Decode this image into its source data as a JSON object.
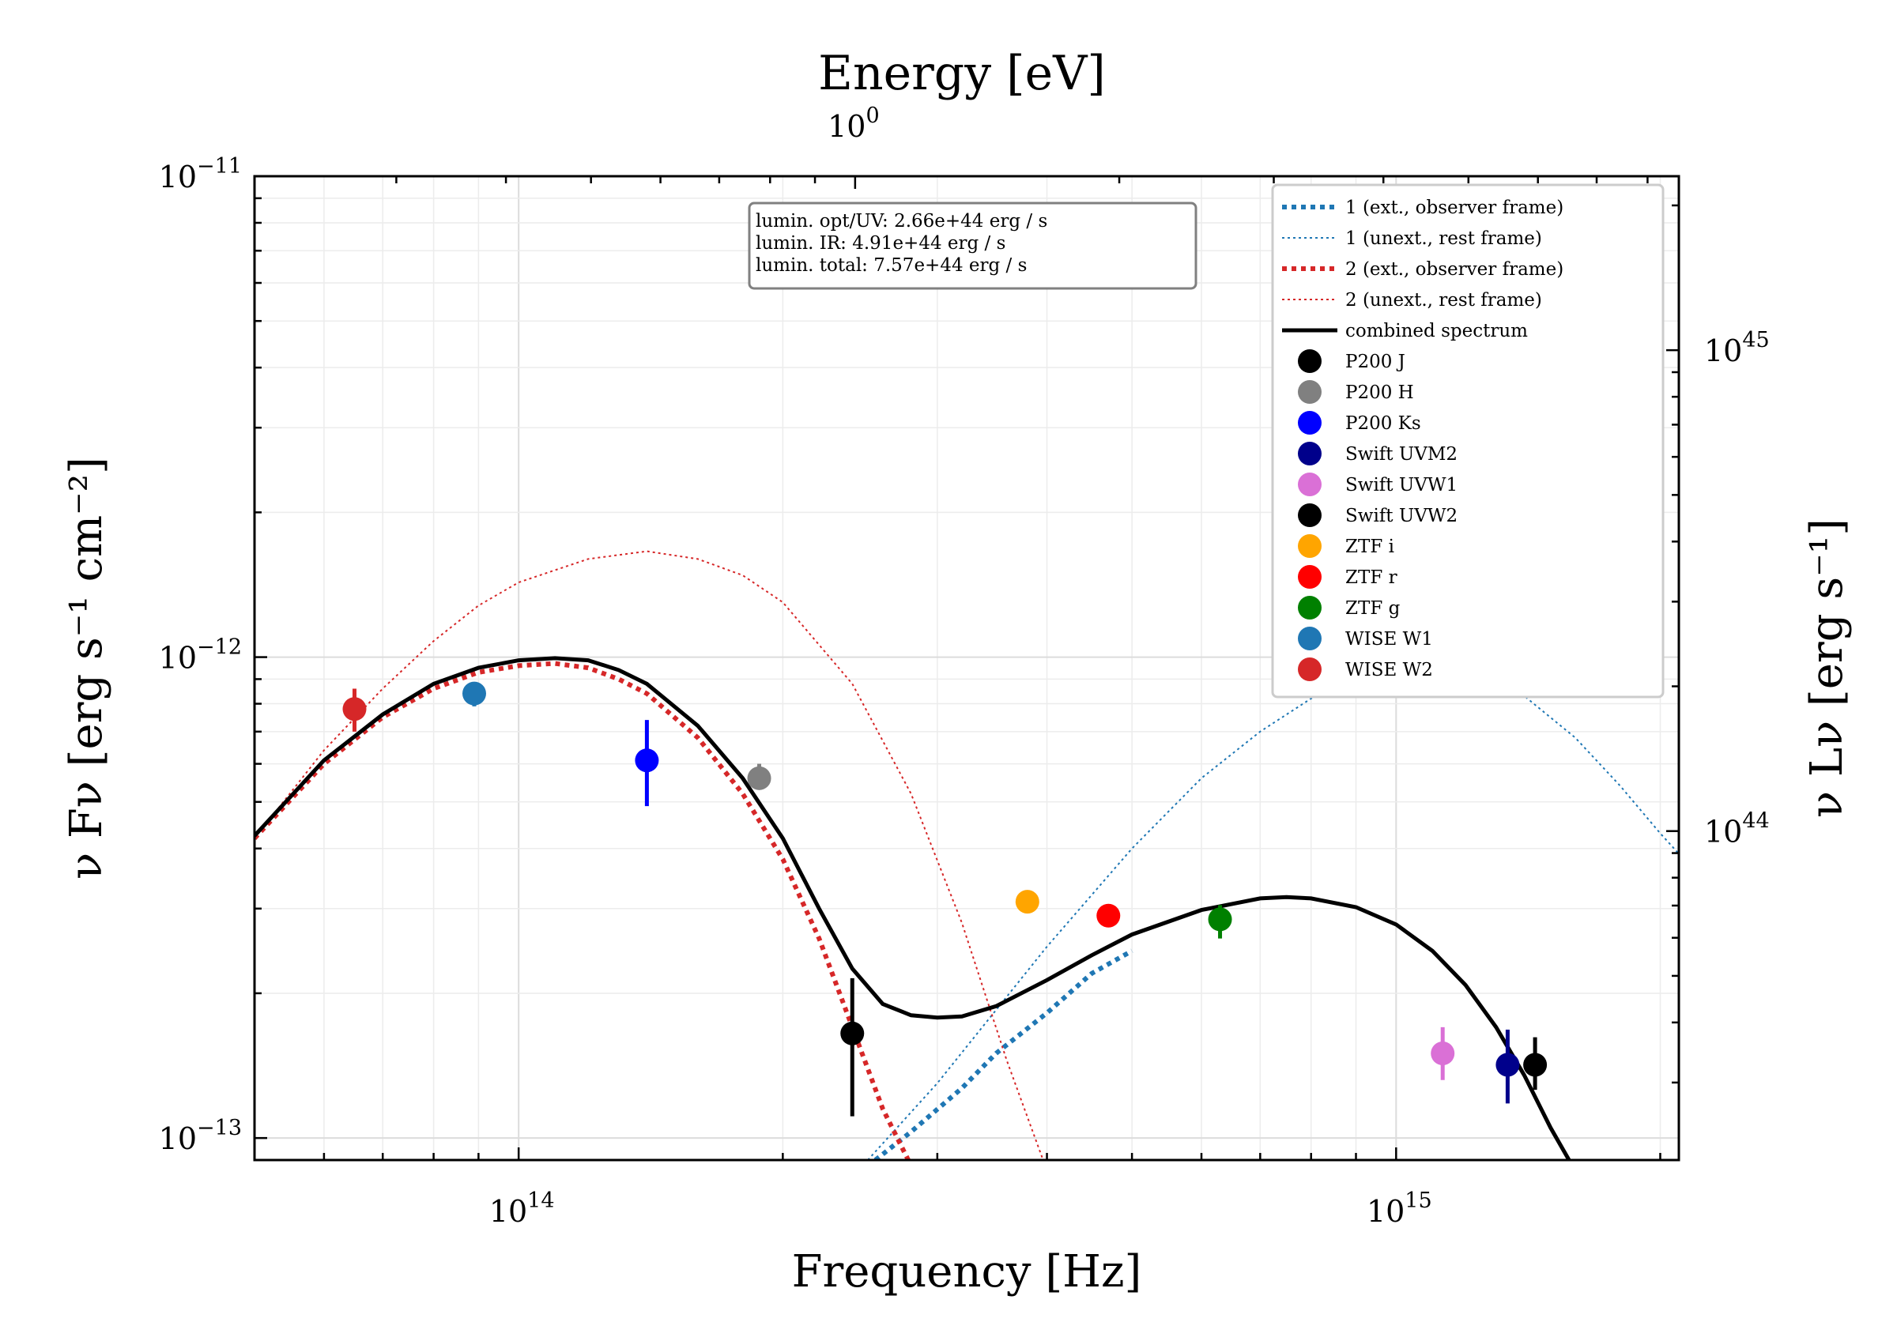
{
  "chart_data": {
    "type": "scatter",
    "title": "",
    "xlabel": "Frequency [Hz]",
    "ylabel": "ν Fν [erg s⁻¹ cm⁻²]",
    "top_xlabel": "Energy [eV]",
    "right_ylabel": "ν Lν [erg s⁻¹]",
    "xscale": "log",
    "yscale": "log",
    "xlim": [
      50000000000000.0,
      2100000000000000.0
    ],
    "ylim": [
      9e-14,
      1e-11
    ],
    "right_ylim": [
      2.07e+43,
      2.3e+45
    ],
    "grid": true,
    "legend_position": "top-right",
    "x_tick_labels": [
      {
        "base": "10",
        "exp": "14"
      },
      {
        "base": "10",
        "exp": "15"
      }
    ],
    "y_tick_labels": [
      {
        "base": "10",
        "exp": "−11"
      },
      {
        "base": "10",
        "exp": "−12"
      },
      {
        "base": "10",
        "exp": "−13"
      }
    ],
    "top_tick_labels": [
      {
        "base": "10",
        "exp": "0"
      }
    ],
    "right_tick_labels": [
      {
        "base": "10",
        "exp": "45"
      },
      {
        "base": "10",
        "exp": "44"
      }
    ],
    "annotation": [
      "lumin. opt/UV: 2.66e+44 erg / s",
      "lumin. IR: 4.91e+44 erg / s",
      "lumin. total: 7.57e+44 erg / s"
    ],
    "lines": [
      {
        "name": "1 (ext., observer frame)",
        "color": "#1f77b4",
        "style": "dotted-thick",
        "points": [
          [
            255000000000000.0,
            9e-14
          ],
          [
            280000000000000.0,
            1.03e-13
          ],
          [
            320000000000000.0,
            1.27e-13
          ],
          [
            350000000000000.0,
            1.5e-13
          ],
          [
            400000000000000.0,
            1.82e-13
          ],
          [
            450000000000000.0,
            2.2e-13
          ],
          [
            500000000000000.0,
            2.45e-13
          ]
        ]
      },
      {
        "name": "1 (unext., rest frame)",
        "color": "#1f77b4",
        "style": "dotted-thin",
        "points": [
          [
            250000000000000.0,
            9e-14
          ],
          [
            300000000000000.0,
            1.3e-13
          ],
          [
            400000000000000.0,
            2.5e-13
          ],
          [
            500000000000000.0,
            4e-13
          ],
          [
            600000000000000.0,
            5.6e-13
          ],
          [
            700000000000000.0,
            7e-13
          ],
          [
            800000000000000.0,
            8.2e-13
          ],
          [
            900000000000000.0,
            8.9e-13
          ],
          [
            1000000000000000.0,
            9.3e-13
          ],
          [
            1100000000000000.0,
            9.6e-13
          ],
          [
            1250000000000000.0,
            9.2e-13
          ],
          [
            1400000000000000.0,
            8.3e-13
          ],
          [
            1600000000000000.0,
            6.8e-13
          ],
          [
            1800000000000000.0,
            5.4e-13
          ],
          [
            2000000000000000.0,
            4.3e-13
          ],
          [
            2100000000000000.0,
            3.9e-13
          ]
        ]
      },
      {
        "name": "2 (ext., observer frame)",
        "color": "#d62728",
        "style": "dotted-thick",
        "points": [
          [
            50000000000000.0,
            4.2e-13
          ],
          [
            60000000000000.0,
            6e-13
          ],
          [
            70000000000000.0,
            7.5e-13
          ],
          [
            80000000000000.0,
            8.6e-13
          ],
          [
            90000000000000.0,
            9.3e-13
          ],
          [
            100000000000000.0,
            9.6e-13
          ],
          [
            110000000000000.0,
            9.7e-13
          ],
          [
            120000000000000.0,
            9.5e-13
          ],
          [
            130000000000000.0,
            9e-13
          ],
          [
            140000000000000.0,
            8.4e-13
          ],
          [
            160000000000000.0,
            6.8e-13
          ],
          [
            180000000000000.0,
            5.2e-13
          ],
          [
            200000000000000.0,
            3.8e-13
          ],
          [
            220000000000000.0,
            2.6e-13
          ],
          [
            240000000000000.0,
            1.7e-13
          ],
          [
            260000000000000.0,
            1.15e-13
          ],
          [
            278000000000000.0,
            9e-14
          ]
        ]
      },
      {
        "name": "2 (unext., rest frame)",
        "color": "#d62728",
        "style": "dotted-thin",
        "points": [
          [
            50000000000000.0,
            4.2e-13
          ],
          [
            60000000000000.0,
            6.4e-13
          ],
          [
            70000000000000.0,
            8.6e-13
          ],
          [
            80000000000000.0,
            1.08e-12
          ],
          [
            90000000000000.0,
            1.28e-12
          ],
          [
            100000000000000.0,
            1.43e-12
          ],
          [
            120000000000000.0,
            1.6e-12
          ],
          [
            140000000000000.0,
            1.66e-12
          ],
          [
            160000000000000.0,
            1.6e-12
          ],
          [
            180000000000000.0,
            1.48e-12
          ],
          [
            200000000000000.0,
            1.3e-12
          ],
          [
            240000000000000.0,
            8.8e-13
          ],
          [
            280000000000000.0,
            5.2e-13
          ],
          [
            320000000000000.0,
            2.8e-13
          ],
          [
            360000000000000.0,
            1.45e-13
          ],
          [
            396000000000000.0,
            9e-14
          ]
        ]
      },
      {
        "name": "combined spectrum",
        "color": "#000000",
        "style": "solid",
        "points": [
          [
            50000000000000.0,
            4.25e-13
          ],
          [
            60000000000000.0,
            6.1e-13
          ],
          [
            70000000000000.0,
            7.6e-13
          ],
          [
            80000000000000.0,
            8.8e-13
          ],
          [
            90000000000000.0,
            9.5e-13
          ],
          [
            100000000000000.0,
            9.85e-13
          ],
          [
            110000000000000.0,
            9.95e-13
          ],
          [
            120000000000000.0,
            9.85e-13
          ],
          [
            130000000000000.0,
            9.4e-13
          ],
          [
            140000000000000.0,
            8.8e-13
          ],
          [
            160000000000000.0,
            7.2e-13
          ],
          [
            180000000000000.0,
            5.6e-13
          ],
          [
            200000000000000.0,
            4.2e-13
          ],
          [
            220000000000000.0,
            3e-13
          ],
          [
            240000000000000.0,
            2.25e-13
          ],
          [
            260000000000000.0,
            1.9e-13
          ],
          [
            280000000000000.0,
            1.8e-13
          ],
          [
            300000000000000.0,
            1.78e-13
          ],
          [
            320000000000000.0,
            1.79e-13
          ],
          [
            350000000000000.0,
            1.88e-13
          ],
          [
            400000000000000.0,
            2.13e-13
          ],
          [
            450000000000000.0,
            2.4e-13
          ],
          [
            500000000000000.0,
            2.65e-13
          ],
          [
            600000000000000.0,
            2.98e-13
          ],
          [
            700000000000000.0,
            3.15e-13
          ],
          [
            750000000000000.0,
            3.17e-13
          ],
          [
            800000000000000.0,
            3.15e-13
          ],
          [
            900000000000000.0,
            3.02e-13
          ],
          [
            1000000000000000.0,
            2.78e-13
          ],
          [
            1100000000000000.0,
            2.45e-13
          ],
          [
            1200000000000000.0,
            2.08e-13
          ],
          [
            1300000000000000.0,
            1.7e-13
          ],
          [
            1400000000000000.0,
            1.35e-13
          ],
          [
            1500000000000000.0,
            1.05e-13
          ],
          [
            1580000000000000.0,
            8.9e-14
          ]
        ]
      }
    ],
    "series": [
      {
        "name": "P200 J",
        "color": "#000000",
        "x": 240000000000000.0,
        "y": 1.65e-13,
        "yerr": [
          1.11e-13,
          2.15e-13
        ]
      },
      {
        "name": "P200 H",
        "color": "#808080",
        "x": 188000000000000.0,
        "y": 5.6e-13,
        "yerr": [
          5.3e-13,
          6e-13
        ]
      },
      {
        "name": "P200 Ks",
        "color": "#0000ff",
        "x": 140000000000000.0,
        "y": 6.1e-13,
        "yerr": [
          4.9e-13,
          7.4e-13
        ]
      },
      {
        "name": "Swift UVM2",
        "color": "#00008b",
        "x": 1340000000000000.0,
        "y": 1.42e-13,
        "yerr": [
          1.18e-13,
          1.68e-13
        ]
      },
      {
        "name": "Swift UVW1",
        "color": "#da70d6",
        "x": 1130000000000000.0,
        "y": 1.5e-13,
        "yerr": [
          1.32e-13,
          1.7e-13
        ]
      },
      {
        "name": "Swift UVW2",
        "color": "#000000",
        "x": 1440000000000000.0,
        "y": 1.42e-13,
        "yerr": [
          1.26e-13,
          1.62e-13
        ]
      },
      {
        "name": "ZTF i",
        "color": "#ffa500",
        "x": 380000000000000.0,
        "y": 3.1e-13,
        "yerr": null
      },
      {
        "name": "ZTF r",
        "color": "#ff0000",
        "x": 470000000000000.0,
        "y": 2.9e-13,
        "yerr": null
      },
      {
        "name": "ZTF g",
        "color": "#008000",
        "x": 630000000000000.0,
        "y": 2.85e-13,
        "yerr": [
          2.6e-13,
          3.05e-13
        ]
      },
      {
        "name": "WISE W1",
        "color": "#1f77b4",
        "x": 89000000000000.0,
        "y": 8.4e-13,
        "yerr": [
          7.9e-13,
          8.8e-13
        ]
      },
      {
        "name": "WISE W2",
        "color": "#d62728",
        "x": 65000000000000.0,
        "y": 7.8e-13,
        "yerr": [
          7e-13,
          8.6e-13
        ]
      }
    ]
  }
}
